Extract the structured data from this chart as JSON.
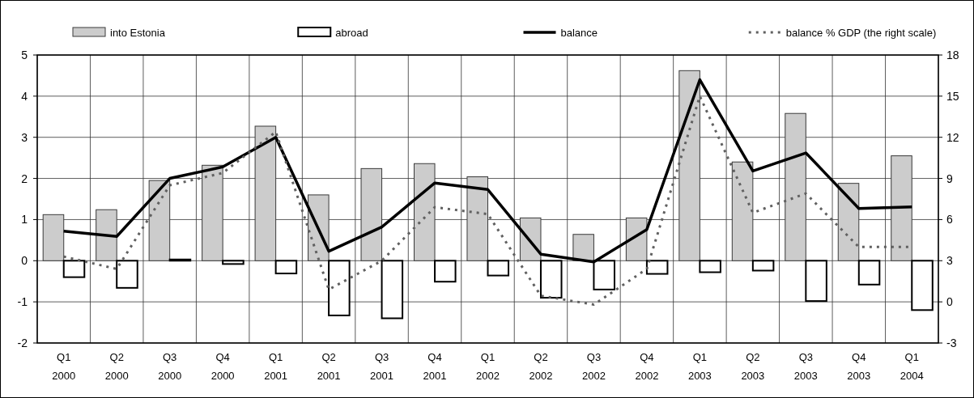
{
  "chart_data": {
    "type": "bar",
    "categories": [
      "Q1 2000",
      "Q2 2000",
      "Q3 2000",
      "Q4 2000",
      "Q1 2001",
      "Q2 2001",
      "Q3 2001",
      "Q4 2001",
      "Q1 2002",
      "Q2 2002",
      "Q3 2002",
      "Q4 2002",
      "Q1 2003",
      "Q2 2003",
      "Q3 2003",
      "Q4 2003",
      "Q1 2004"
    ],
    "series": [
      {
        "name": "into Estonia",
        "color": "#cccccc",
        "values": [
          1.12,
          1.24,
          1.95,
          2.32,
          3.27,
          1.6,
          2.24,
          2.36,
          2.04,
          1.04,
          0.64,
          1.04,
          4.62,
          2.4,
          3.58,
          1.88,
          2.55
        ]
      },
      {
        "name": "abroad",
        "color": "#ffffff",
        "values": [
          -0.4,
          -0.66,
          0.03,
          -0.08,
          -0.31,
          -1.33,
          -1.4,
          -0.51,
          -0.36,
          -0.9,
          -0.7,
          -0.32,
          -0.28,
          -0.24,
          -0.98,
          -0.58,
          -1.2
        ]
      },
      {
        "name": "balance",
        "type": "line",
        "color": "#000000",
        "line_style": "solid",
        "values": [
          0.72,
          0.59,
          2.0,
          2.28,
          3.0,
          0.23,
          0.82,
          1.89,
          1.73,
          0.16,
          -0.03,
          0.76,
          4.4,
          2.18,
          2.62,
          1.27,
          1.31
        ]
      },
      {
        "name": "balance % GDP (the right scale)",
        "type": "line",
        "axis": "y2",
        "color": "#606060",
        "line_style": "dotted",
        "values": [
          3.3,
          2.4,
          8.5,
          9.4,
          12.4,
          0.9,
          3.0,
          6.9,
          6.4,
          0.45,
          -0.2,
          2.4,
          15.0,
          6.5,
          7.9,
          4.0,
          4.0
        ]
      }
    ],
    "ylim": [
      -2,
      5
    ],
    "yticks": [
      -2,
      -1,
      0,
      1,
      2,
      3,
      4,
      5
    ],
    "y2lim": [
      -3,
      18
    ],
    "y2ticks": [
      -3,
      0,
      3,
      6,
      9,
      12,
      15,
      18
    ],
    "grid": true,
    "legend": "top",
    "marker": "none"
  }
}
